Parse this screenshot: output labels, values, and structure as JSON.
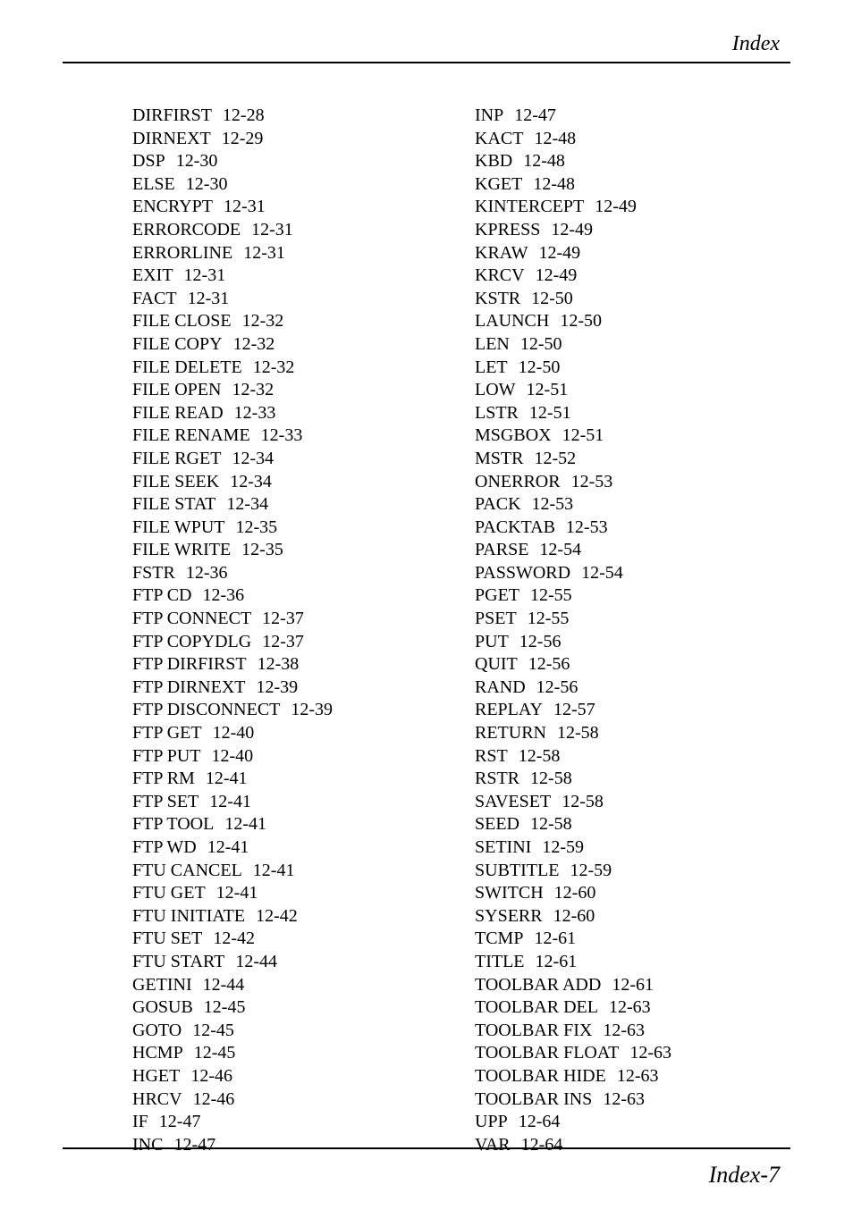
{
  "header": {
    "title": "Index"
  },
  "footer": {
    "pagenum": "Index-7"
  },
  "left": [
    {
      "t": "DIRFIRST",
      "p": "12-28"
    },
    {
      "t": "DIRNEXT",
      "p": "12-29"
    },
    {
      "t": "DSP",
      "p": "12-30"
    },
    {
      "t": "ELSE",
      "p": "12-30"
    },
    {
      "t": "ENCRYPT",
      "p": "12-31"
    },
    {
      "t": "ERRORCODE",
      "p": "12-31"
    },
    {
      "t": "ERRORLINE",
      "p": "12-31"
    },
    {
      "t": "EXIT",
      "p": "12-31"
    },
    {
      "t": "FACT",
      "p": "12-31"
    },
    {
      "t": "FILE CLOSE",
      "p": "12-32"
    },
    {
      "t": "FILE COPY",
      "p": "12-32"
    },
    {
      "t": "FILE DELETE",
      "p": "12-32"
    },
    {
      "t": "FILE OPEN",
      "p": "12-32"
    },
    {
      "t": "FILE READ",
      "p": "12-33"
    },
    {
      "t": "FILE RENAME",
      "p": "12-33"
    },
    {
      "t": "FILE RGET",
      "p": "12-34"
    },
    {
      "t": "FILE SEEK",
      "p": "12-34"
    },
    {
      "t": "FILE STAT",
      "p": "12-34"
    },
    {
      "t": "FILE WPUT",
      "p": "12-35"
    },
    {
      "t": "FILE WRITE",
      "p": "12-35"
    },
    {
      "t": "FSTR",
      "p": "12-36"
    },
    {
      "t": "FTP CD",
      "p": "12-36"
    },
    {
      "t": "FTP CONNECT",
      "p": "12-37"
    },
    {
      "t": "FTP COPYDLG",
      "p": "12-37"
    },
    {
      "t": "FTP DIRFIRST",
      "p": "12-38"
    },
    {
      "t": "FTP DIRNEXT",
      "p": "12-39"
    },
    {
      "t": "FTP DISCONNECT",
      "p": "12-39"
    },
    {
      "t": "FTP GET",
      "p": "12-40"
    },
    {
      "t": "FTP PUT",
      "p": "12-40"
    },
    {
      "t": "FTP RM",
      "p": "12-41"
    },
    {
      "t": "FTP SET",
      "p": "12-41"
    },
    {
      "t": "FTP TOOL",
      "p": "12-41"
    },
    {
      "t": "FTP WD",
      "p": "12-41"
    },
    {
      "t": "FTU CANCEL",
      "p": "12-41"
    },
    {
      "t": "FTU GET",
      "p": "12-41"
    },
    {
      "t": "FTU INITIATE",
      "p": "12-42"
    },
    {
      "t": "FTU SET",
      "p": "12-42"
    },
    {
      "t": "FTU START",
      "p": "12-44"
    },
    {
      "t": "GETINI",
      "p": "12-44"
    },
    {
      "t": "GOSUB",
      "p": "12-45"
    },
    {
      "t": "GOTO",
      "p": "12-45"
    },
    {
      "t": "HCMP",
      "p": "12-45"
    },
    {
      "t": "HGET",
      "p": "12-46"
    },
    {
      "t": "HRCV",
      "p": "12-46"
    },
    {
      "t": "IF",
      "p": "12-47"
    },
    {
      "t": "INC",
      "p": "12-47"
    }
  ],
  "right": [
    {
      "t": "INP",
      "p": "12-47"
    },
    {
      "t": "KACT",
      "p": "12-48"
    },
    {
      "t": "KBD",
      "p": "12-48"
    },
    {
      "t": "KGET",
      "p": "12-48"
    },
    {
      "t": "KINTERCEPT",
      "p": "12-49"
    },
    {
      "t": "KPRESS",
      "p": "12-49"
    },
    {
      "t": "KRAW",
      "p": "12-49"
    },
    {
      "t": "KRCV",
      "p": "12-49"
    },
    {
      "t": "KSTR",
      "p": "12-50"
    },
    {
      "t": "LAUNCH",
      "p": "12-50"
    },
    {
      "t": "LEN",
      "p": "12-50"
    },
    {
      "t": "LET",
      "p": "12-50"
    },
    {
      "t": "LOW",
      "p": "12-51"
    },
    {
      "t": "LSTR",
      "p": "12-51"
    },
    {
      "t": "MSGBOX",
      "p": "12-51"
    },
    {
      "t": "MSTR",
      "p": "12-52"
    },
    {
      "t": "ONERROR",
      "p": "12-53"
    },
    {
      "t": "PACK",
      "p": "12-53"
    },
    {
      "t": "PACKTAB",
      "p": "12-53"
    },
    {
      "t": "PARSE",
      "p": "12-54"
    },
    {
      "t": "PASSWORD",
      "p": "12-54"
    },
    {
      "t": "PGET",
      "p": "12-55"
    },
    {
      "t": "PSET",
      "p": "12-55"
    },
    {
      "t": "PUT",
      "p": "12-56"
    },
    {
      "t": "QUIT",
      "p": "12-56"
    },
    {
      "t": "RAND",
      "p": "12-56"
    },
    {
      "t": "REPLAY",
      "p": "12-57"
    },
    {
      "t": "RETURN",
      "p": "12-58"
    },
    {
      "t": "RST",
      "p": "12-58"
    },
    {
      "t": "RSTR",
      "p": "12-58"
    },
    {
      "t": "SAVESET",
      "p": "12-58"
    },
    {
      "t": "SEED",
      "p": "12-58"
    },
    {
      "t": "SETINI",
      "p": "12-59"
    },
    {
      "t": "SUBTITLE",
      "p": "12-59"
    },
    {
      "t": "SWITCH",
      "p": "12-60"
    },
    {
      "t": "SYSERR",
      "p": "12-60"
    },
    {
      "t": "TCMP",
      "p": "12-61"
    },
    {
      "t": "TITLE",
      "p": "12-61"
    },
    {
      "t": "TOOLBAR ADD",
      "p": "12-61"
    },
    {
      "t": "TOOLBAR DEL",
      "p": "12-63"
    },
    {
      "t": "TOOLBAR FIX",
      "p": "12-63"
    },
    {
      "t": "TOOLBAR FLOAT",
      "p": "12-63"
    },
    {
      "t": "TOOLBAR HIDE",
      "p": "12-63"
    },
    {
      "t": "TOOLBAR INS",
      "p": "12-63"
    },
    {
      "t": "UPP",
      "p": "12-64"
    },
    {
      "t": "VAR",
      "p": "12-64"
    }
  ]
}
